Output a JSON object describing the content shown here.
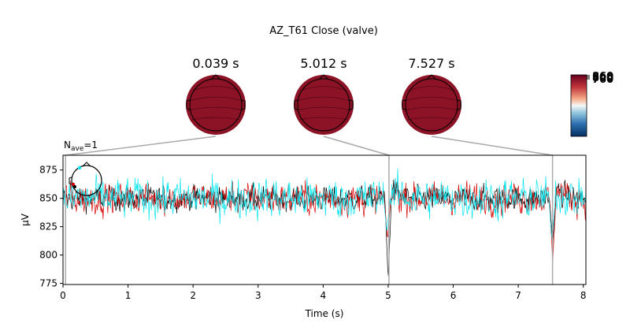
{
  "figure": {
    "title": "AZ_T61 Close (valve)",
    "nave_label": "N",
    "nave_sub": "ave",
    "nave_value": "=1"
  },
  "topomaps": [
    {
      "time_label": "0.039 s",
      "time": 0.039
    },
    {
      "time_label": "5.012 s",
      "time": 5.012
    },
    {
      "time_label": "7.527 s",
      "time": 7.527
    }
  ],
  "colorbar": {
    "tick_labels": [
      "860",
      "800",
      "760"
    ]
  },
  "colors": {
    "black_trace": "#000000",
    "red_trace": "#d50000",
    "cyan_trace": "#00e5ee",
    "topo_fill": "#8b1325",
    "connector": "#a9a9a9"
  },
  "chart_data": {
    "type": "line",
    "title": "AZ_T61 Close (valve)",
    "xlabel": "Time (s)",
    "ylabel": "µV",
    "xlim": [
      0,
      8.04
    ],
    "ylim": [
      774,
      888
    ],
    "x_ticks": [
      0,
      1,
      2,
      3,
      4,
      5,
      6,
      7,
      8
    ],
    "y_ticks": [
      775,
      800,
      825,
      850,
      875
    ],
    "grid": false,
    "annotation_times": [
      0.039,
      5.012,
      7.527
    ],
    "series": [
      {
        "color": "#000000",
        "baseline": 850,
        "noise": 6,
        "events": [
          {
            "t": 5.0,
            "dip": 778
          },
          {
            "t": 7.53,
            "dip": 810
          }
        ]
      },
      {
        "color": "#d50000",
        "baseline": 850,
        "noise": 8,
        "events": [
          {
            "t": 4.99,
            "dip": 813
          },
          {
            "t": 7.53,
            "dip": 794
          }
        ]
      },
      {
        "color": "#00e5ee",
        "baseline": 850,
        "noise": 10,
        "events": [
          {
            "t": 4.98,
            "dip": 820
          },
          {
            "t": 7.52,
            "dip": 812
          }
        ]
      }
    ]
  }
}
